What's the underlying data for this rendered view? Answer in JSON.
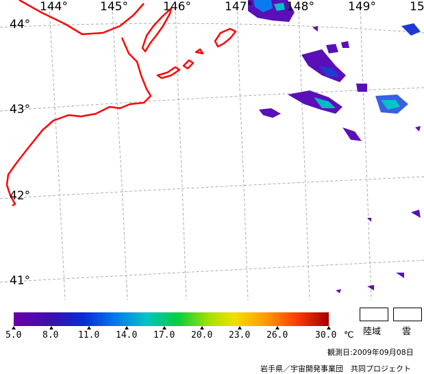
{
  "map": {
    "lon_labels": [
      "144°",
      "145°",
      "146°",
      "147°",
      "148°",
      "149°",
      "15"
    ],
    "lat_labels": [
      "44°",
      "43°",
      "42°",
      "41°"
    ],
    "colors": {
      "coast": "#ff0000",
      "grid": "#aaaaaa"
    }
  },
  "colorbar": {
    "ticks": [
      "5.0",
      "8.0",
      "11.0",
      "14.0",
      "17.0",
      "20.0",
      "23.0",
      "26.0",
      "30.0"
    ],
    "unit": "℃"
  },
  "legend": {
    "land": "陸域",
    "cloud": "雲"
  },
  "footer": {
    "date": "観測日:2009年09月08日",
    "credit": "岩手県／宇宙開発事業団　共同プロジェクト"
  }
}
